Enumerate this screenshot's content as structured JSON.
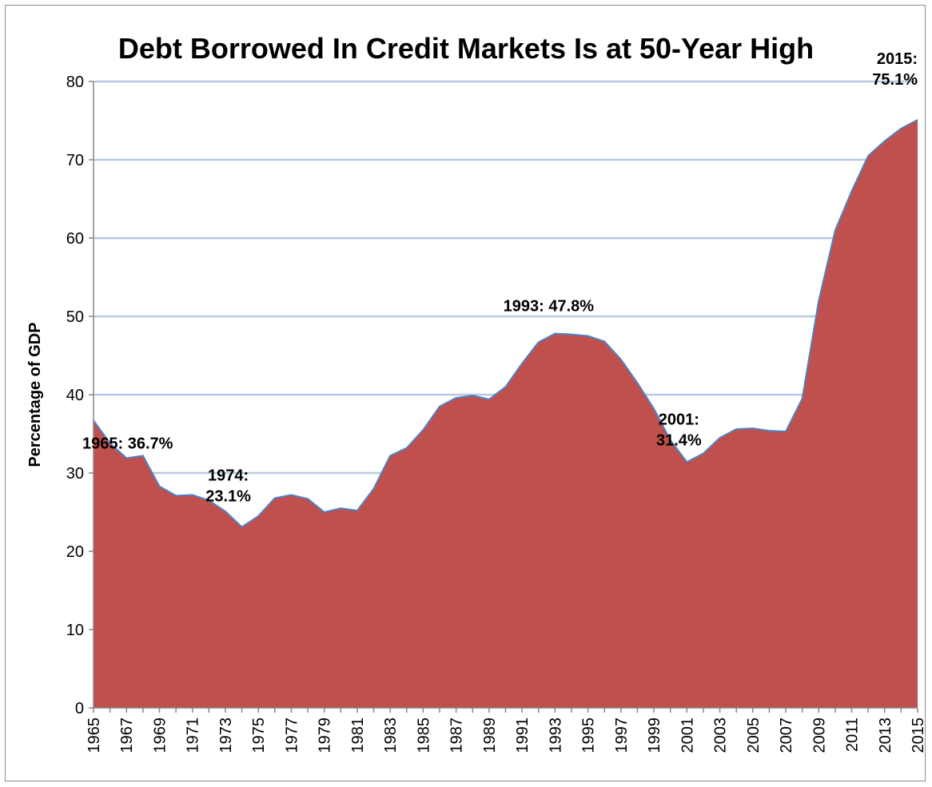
{
  "chart_data": {
    "type": "area",
    "title": "Debt Borrowed In Credit Markets Is at 50-Year High",
    "ylabel": "Percentage of GDP",
    "xlabel": "",
    "ylim": [
      0,
      80
    ],
    "yticks": [
      0,
      10,
      20,
      30,
      40,
      50,
      60,
      70,
      80
    ],
    "xlim": [
      1965,
      2015
    ],
    "xticks": [
      1965,
      1967,
      1969,
      1971,
      1973,
      1975,
      1977,
      1979,
      1981,
      1983,
      1985,
      1987,
      1989,
      1991,
      1993,
      1995,
      1997,
      1999,
      2001,
      2003,
      2005,
      2007,
      2009,
      2011,
      2013,
      2015
    ],
    "grid": true,
    "legend": false,
    "fill_color": "#c0504d",
    "line_color": "#4f81bd",
    "grid_color": "#b9c9e3",
    "series": [
      {
        "x": [
          1965,
          1966,
          1967,
          1968,
          1969,
          1970,
          1971,
          1972,
          1973,
          1974,
          1975,
          1976,
          1977,
          1978,
          1979,
          1980,
          1981,
          1982,
          1983,
          1984,
          1985,
          1986,
          1987,
          1988,
          1989,
          1990,
          1991,
          1992,
          1993,
          1994,
          1995,
          1996,
          1997,
          1998,
          1999,
          2000,
          2001,
          2002,
          2003,
          2004,
          2005,
          2006,
          2007,
          2008,
          2009,
          2010,
          2011,
          2012,
          2013,
          2014,
          2015
        ],
        "values": [
          36.7,
          33.8,
          31.9,
          32.2,
          28.3,
          27.1,
          27.2,
          26.5,
          25.1,
          23.1,
          24.5,
          26.8,
          27.2,
          26.7,
          25.0,
          25.5,
          25.2,
          28.0,
          32.2,
          33.2,
          35.5,
          38.5,
          39.6,
          39.9,
          39.4,
          41.0,
          44.0,
          46.7,
          47.8,
          47.7,
          47.5,
          46.8,
          44.5,
          41.5,
          38.2,
          34.2,
          31.4,
          32.5,
          34.5,
          35.6,
          35.7,
          35.4,
          35.3,
          39.5,
          52.0,
          61.0,
          66.0,
          70.5,
          72.4,
          74.0,
          75.1
        ]
      }
    ],
    "annotations": [
      {
        "x": 1965,
        "y": 36.7,
        "lines": [
          "1965: 36.7%"
        ],
        "anchor": "start"
      },
      {
        "x": 1974,
        "y": 23.1,
        "lines": [
          "1974:",
          "23.1%"
        ],
        "anchor": "middle"
      },
      {
        "x": 1993,
        "y": 47.8,
        "lines": [
          "1993: 47.8%"
        ],
        "anchor": "middle"
      },
      {
        "x": 2001,
        "y": 31.4,
        "lines": [
          "2001:",
          "31.4%"
        ],
        "anchor": "middle"
      },
      {
        "x": 2015,
        "y": 75.1,
        "lines": [
          "2015:",
          "75.1%"
        ],
        "anchor": "end"
      }
    ]
  }
}
